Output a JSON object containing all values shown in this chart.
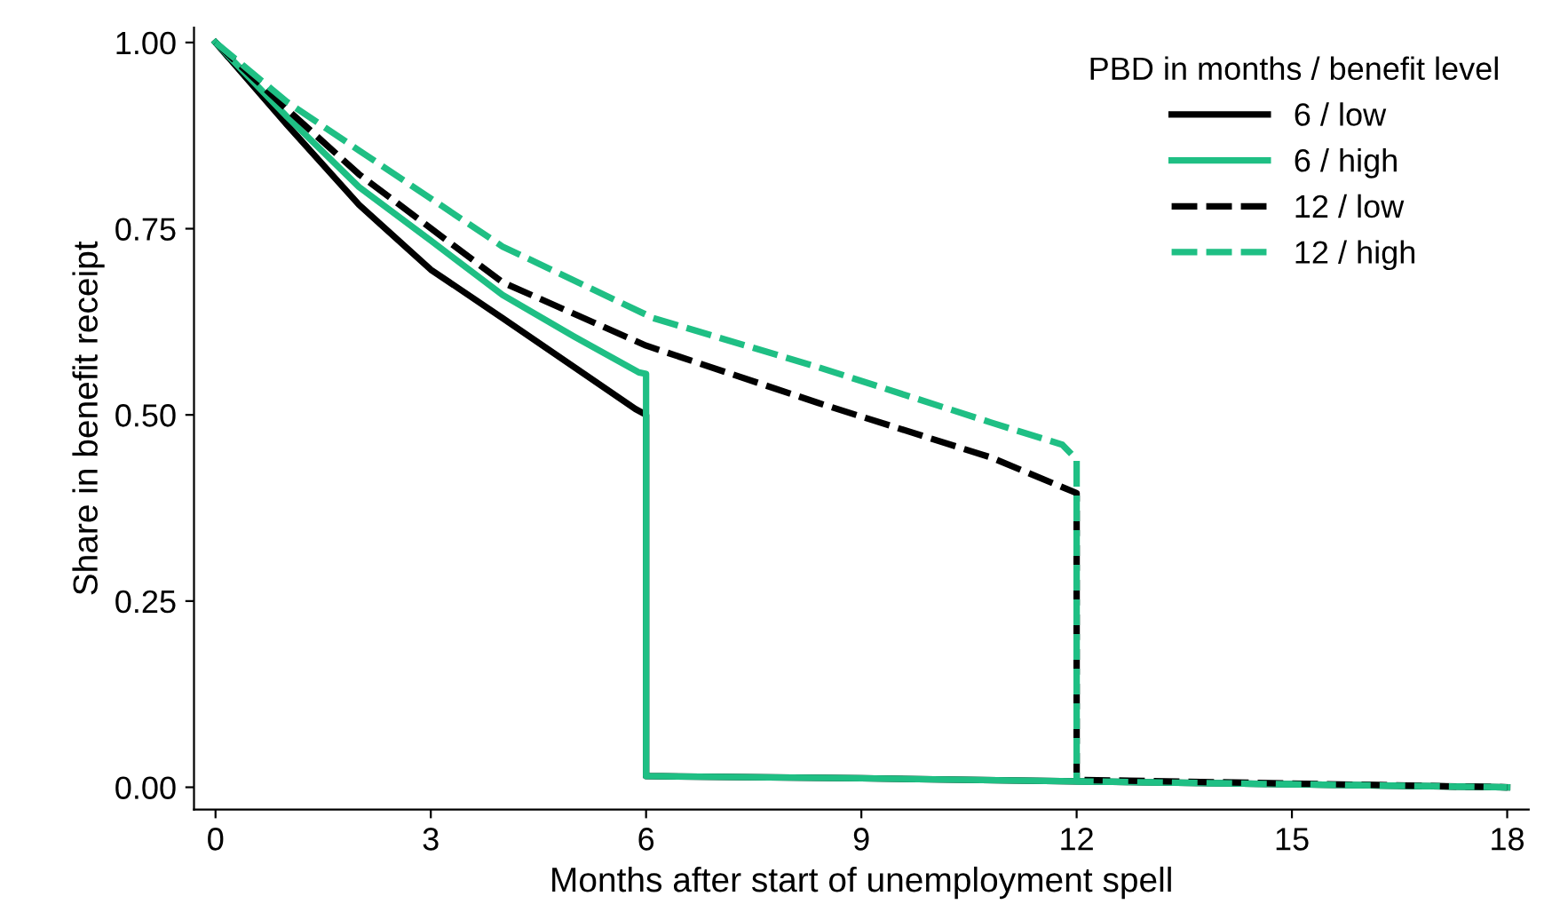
{
  "chart_data": {
    "type": "line",
    "xlabel": "Months after start of unemployment spell",
    "ylabel": "Share in benefit receipt",
    "legend_title": "PBD in months / benefit level",
    "legend": "top right",
    "grid": false,
    "xlim": [
      -0.3,
      18.3
    ],
    "xticks": [
      0,
      3,
      6,
      9,
      12,
      15,
      18
    ],
    "ylim": [
      -0.03,
      1.02
    ],
    "yticks": [
      {
        "value": 0,
        "label": "0.00"
      },
      {
        "value": 0.25,
        "label": "0.25"
      },
      {
        "value": 0.5,
        "label": "0.50"
      },
      {
        "value": 0.75,
        "label": "0.75"
      },
      {
        "value": 1,
        "label": "1.00"
      }
    ],
    "series": [
      {
        "name": "6 / low",
        "color": "#000000",
        "line_style": "solid",
        "x": [
          0,
          1,
          2,
          3,
          4,
          5,
          5.85,
          6,
          6,
          6,
          9,
          12,
          15,
          18
        ],
        "values": [
          1,
          0.889,
          0.782,
          0.695,
          0.63,
          0.564,
          0.508,
          0.5,
          0.39,
          0.015,
          0.012,
          0.008,
          0.004,
          0
        ]
      },
      {
        "name": "6 / high",
        "color": "#1fbf84",
        "line_style": "solid",
        "x": [
          0,
          1,
          2,
          3,
          4,
          5,
          5.9,
          6,
          6,
          9,
          12,
          15,
          18
        ],
        "values": [
          1,
          0.9,
          0.806,
          0.734,
          0.661,
          0.605,
          0.557,
          0.555,
          0.015,
          0.012,
          0.008,
          0.004,
          0
        ]
      },
      {
        "name": "12 / low",
        "color": "#000000",
        "line_style": "dashed",
        "x": [
          0,
          1,
          2,
          4,
          6,
          8.4,
          10.8,
          12,
          12,
          15,
          18
        ],
        "values": [
          1,
          0.91,
          0.823,
          0.678,
          0.593,
          0.516,
          0.443,
          0.395,
          0.01,
          0.005,
          0
        ]
      },
      {
        "name": "12 / high",
        "color": "#1fbf84",
        "line_style": "dashed",
        "x": [
          0,
          1,
          2,
          4,
          6.1,
          8.4,
          10.8,
          11.8,
          12,
          12,
          15,
          18
        ],
        "values": [
          1,
          0.92,
          0.855,
          0.726,
          0.63,
          0.564,
          0.49,
          0.46,
          0.44,
          0.008,
          0.004,
          0
        ]
      }
    ]
  }
}
